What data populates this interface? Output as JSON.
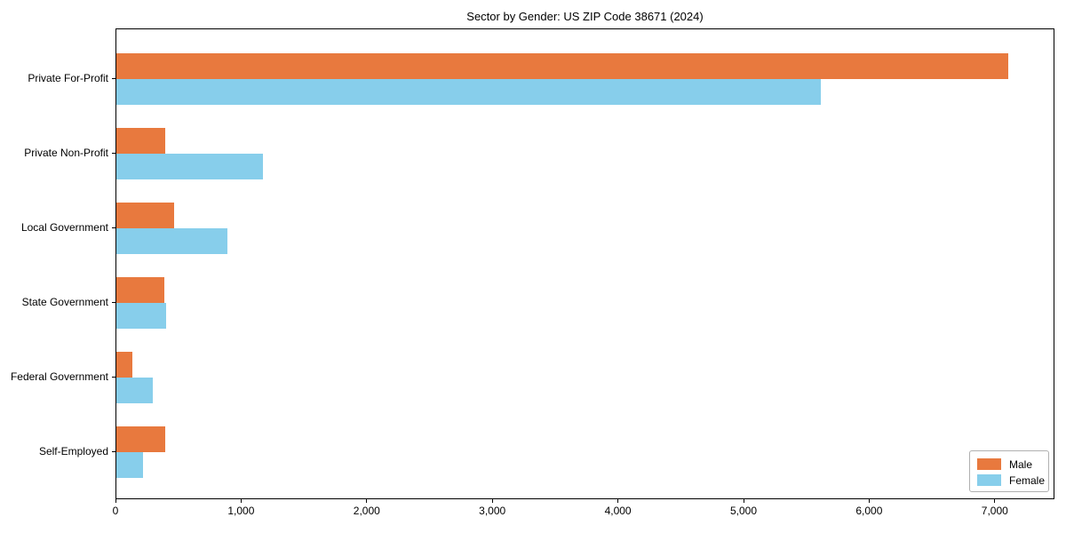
{
  "title": "Sector by Gender: US ZIP Code 38671 (2024)",
  "chart_data": {
    "type": "bar",
    "orientation": "horizontal",
    "title": "Sector by Gender: US ZIP Code 38671 (2024)",
    "xlabel": "",
    "ylabel": "",
    "categories": [
      "Private For-Profit",
      "Private Non-Profit",
      "Local Government",
      "State Government",
      "Federal Government",
      "Self-Employed"
    ],
    "series": [
      {
        "name": "Male",
        "color": "#e8793e",
        "values": [
          7100,
          390,
          460,
          385,
          130,
          390
        ]
      },
      {
        "name": "Female",
        "color": "#87ceeb",
        "values": [
          5610,
          1170,
          885,
          395,
          290,
          210
        ]
      }
    ],
    "xlim": [
      0,
      7475
    ],
    "xticks": [
      0,
      1000,
      2000,
      3000,
      4000,
      5000,
      6000,
      7000
    ],
    "xtick_labels": [
      "0",
      "1,000",
      "2,000",
      "3,000",
      "4,000",
      "5,000",
      "6,000",
      "7,000"
    ],
    "grid": false,
    "legend_position": "lower right",
    "axis_color": "#000000"
  }
}
